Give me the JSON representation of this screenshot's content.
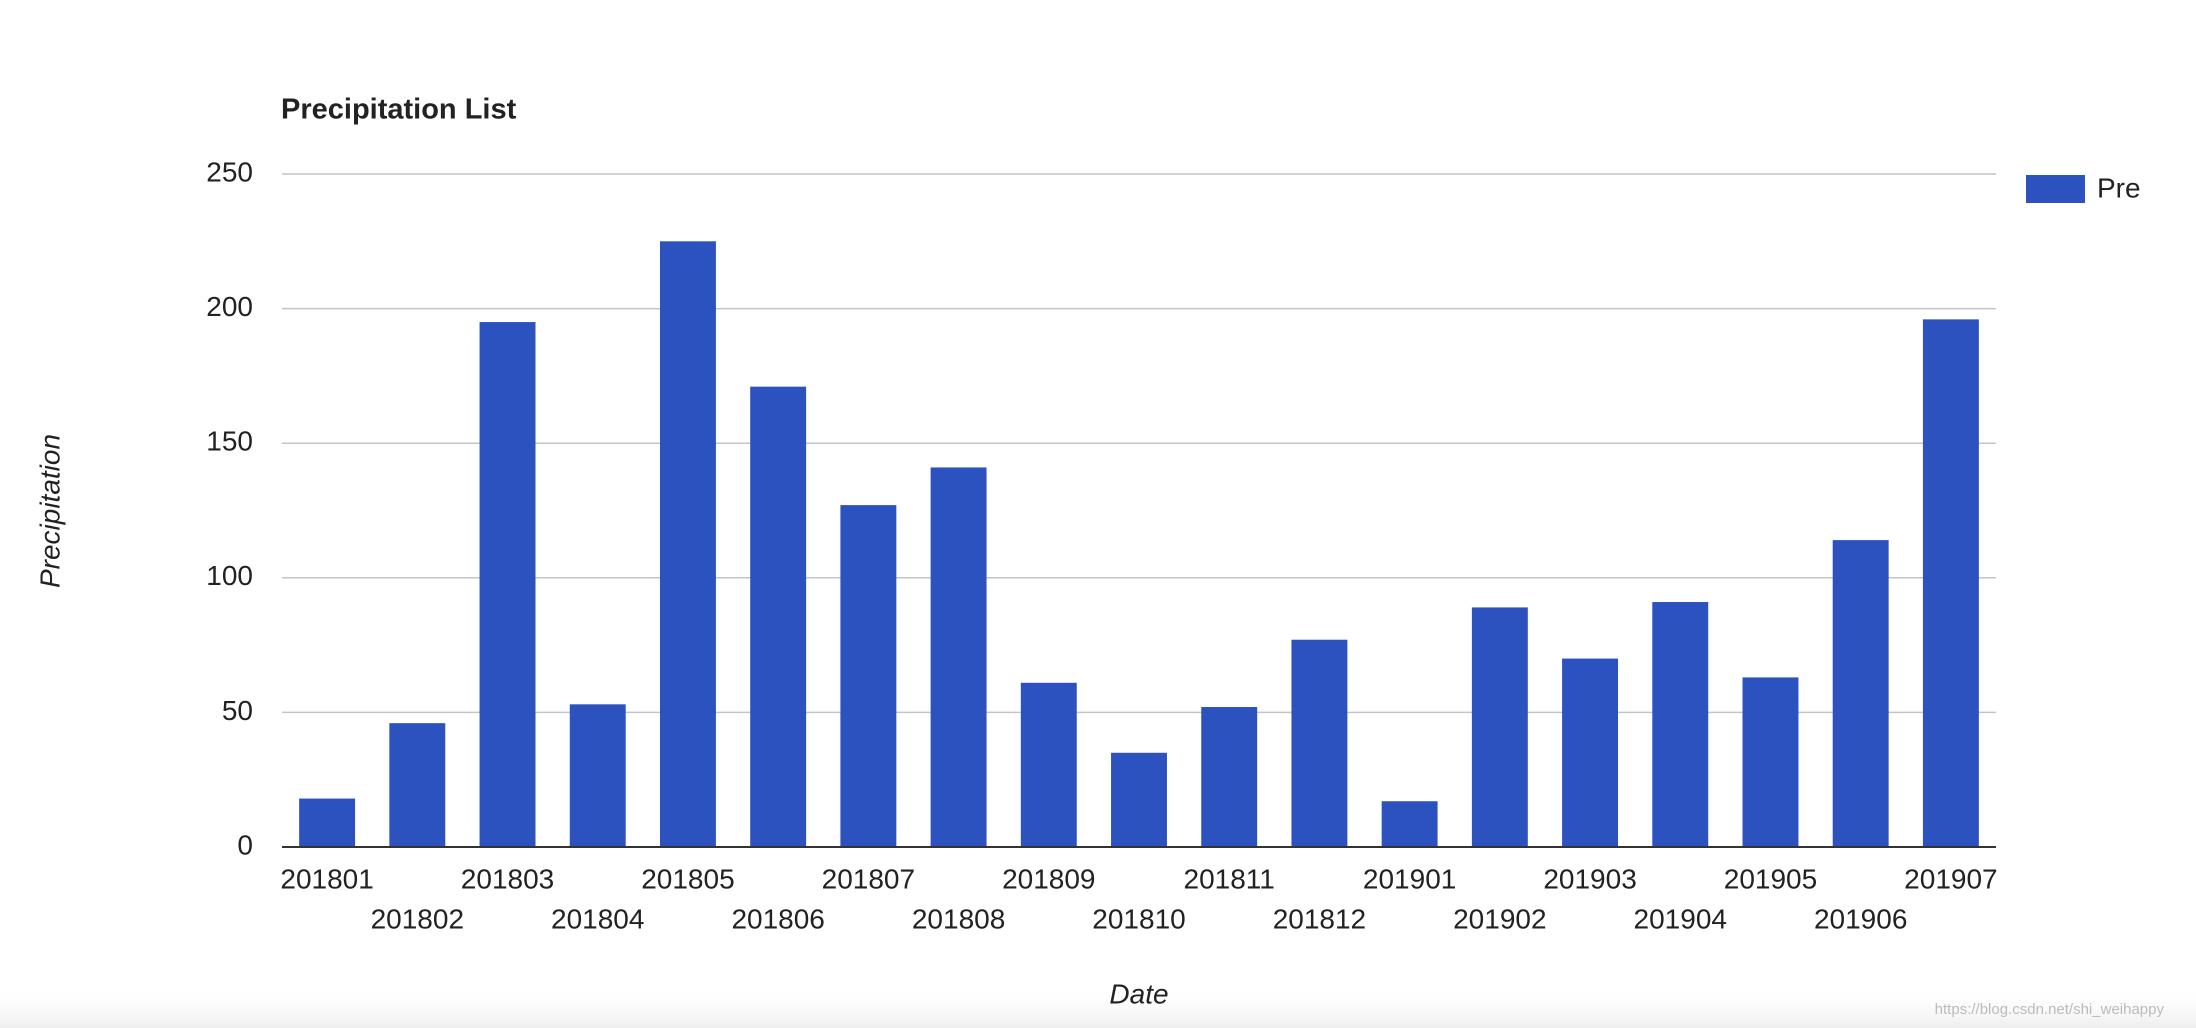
{
  "chart_data": {
    "type": "bar",
    "title": "Precipitation List",
    "x_label": "Date",
    "y_label": "Precipitation",
    "categories": [
      "201801",
      "201802",
      "201803",
      "201804",
      "201805",
      "201806",
      "201807",
      "201808",
      "201809",
      "201810",
      "201811",
      "201812",
      "201901",
      "201902",
      "201903",
      "201904",
      "201905",
      "201906",
      "201907"
    ],
    "series": [
      {
        "name": "Pre",
        "color": "#2b52bf",
        "values": [
          18,
          46,
          195,
          53,
          225,
          171,
          127,
          141,
          61,
          35,
          52,
          77,
          17,
          89,
          70,
          91,
          63,
          114,
          196
        ]
      }
    ],
    "ylim": [
      0,
      250
    ],
    "yticks": [
      0,
      50,
      100,
      150,
      200,
      250
    ],
    "grid": true,
    "legend": "right",
    "watermark": "https://blog.csdn.net/shi_weihappy"
  }
}
